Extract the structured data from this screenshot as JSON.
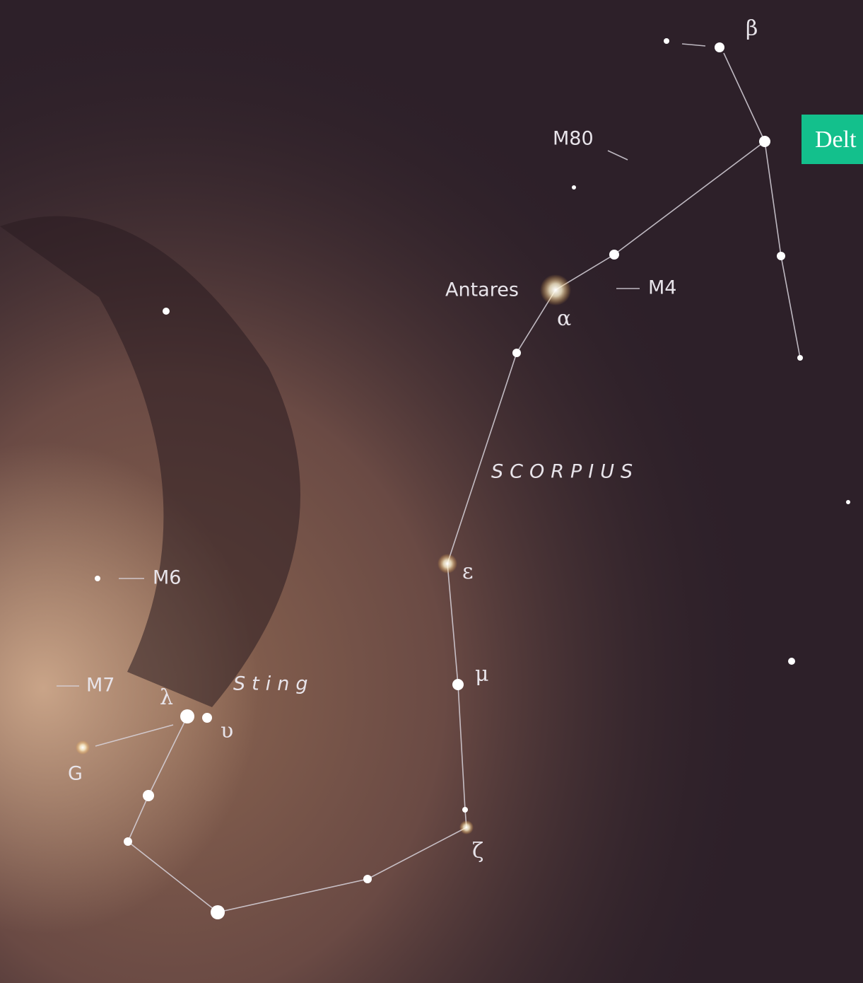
{
  "labels": {
    "beta": "β",
    "m80": "M80",
    "antares": "Antares",
    "alpha": "α",
    "m4": "M4",
    "constellation": "SCORPIUS",
    "epsilon": "ε",
    "m6": "M6",
    "m7": "M7",
    "sting": "Sting",
    "mu": "μ",
    "lambda": "λ",
    "upsilon": "υ",
    "g": "G",
    "zeta": "ζ"
  },
  "tag": {
    "text": "Delt"
  }
}
